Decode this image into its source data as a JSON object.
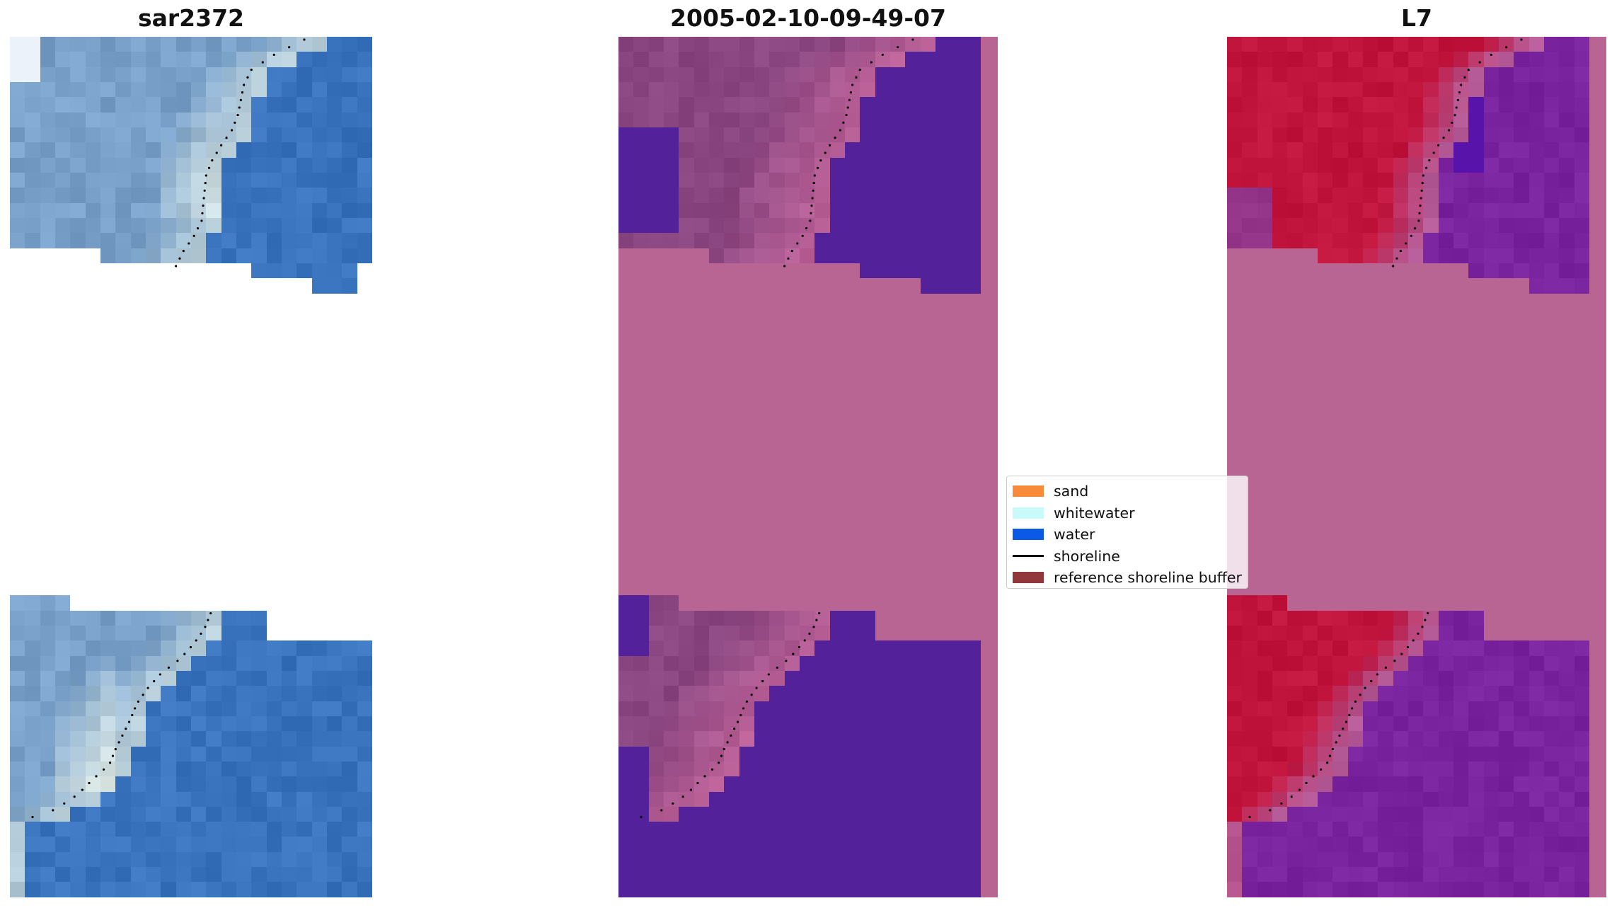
{
  "panels": [
    {
      "title": "sar2372"
    },
    {
      "title": "2005-02-10-09-49-07"
    },
    {
      "title": "L7"
    }
  ],
  "legend": {
    "items": [
      {
        "label": "sand",
        "color": "#f88a3c",
        "kind": "patch"
      },
      {
        "label": "whitewater",
        "color": "#c8fafa",
        "kind": "patch"
      },
      {
        "label": "water",
        "color": "#0a5ae6",
        "kind": "patch"
      },
      {
        "label": "shoreline",
        "color": "#000000",
        "kind": "line"
      },
      {
        "label": "reference shoreline buffer",
        "color": "#8c2d32",
        "kind": "patch"
      }
    ]
  },
  "colors": {
    "nodata_pink": "#b96594",
    "classified_water_purple": "#53229a",
    "rgb_water_blue": "#3a73bd",
    "rgb_whitewater": "#e9f2e9",
    "false_color_red": "#c0143c",
    "false_color_purple": "#7a239f"
  }
}
